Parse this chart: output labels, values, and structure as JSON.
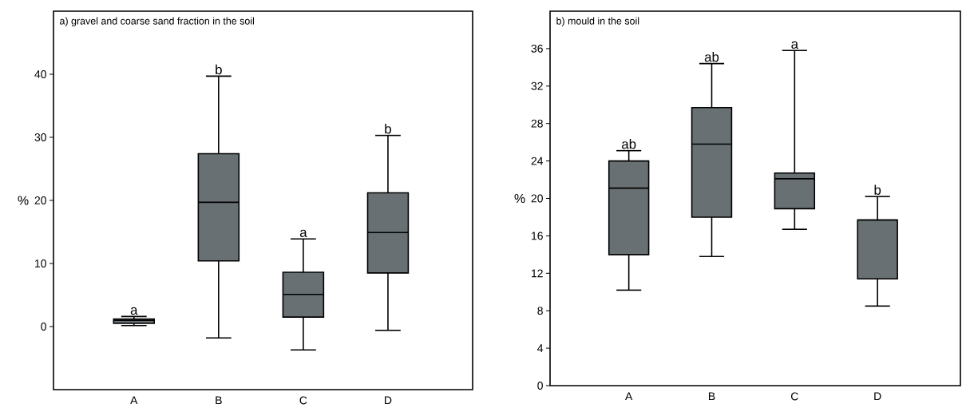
{
  "chart_data": [
    {
      "type": "box",
      "title": "a) gravel and coarse sand fraction in the soil",
      "ylabel": "%",
      "categories": [
        "A",
        "B",
        "C",
        "D"
      ],
      "color": "#687073",
      "boxes": [
        {
          "low": 0.15,
          "q1": 0.5,
          "median": 1.0,
          "q3": 1.2,
          "high": 1.6
        },
        {
          "low": -1.8,
          "q1": 10.4,
          "median": 19.7,
          "q3": 27.4,
          "high": 39.7
        },
        {
          "low": -3.7,
          "q1": 1.5,
          "median": 5.1,
          "q3": 8.6,
          "high": 13.9
        },
        {
          "low": -0.6,
          "q1": 8.5,
          "median": 14.9,
          "q3": 21.2,
          "high": 30.3
        }
      ],
      "ylim": [
        -10,
        50
      ],
      "yticks": [
        0,
        10,
        20,
        30,
        40
      ],
      "annotations": [
        "a",
        "b",
        "a",
        "b"
      ]
    },
    {
      "type": "box",
      "title": "b) mould in the soil",
      "ylabel": "%",
      "categories": [
        "A",
        "B",
        "C",
        "D"
      ],
      "color": "#687073",
      "boxes": [
        {
          "low": 10.2,
          "q1": 14.0,
          "median": 21.1,
          "q3": 24.0,
          "high": 25.1
        },
        {
          "low": 13.8,
          "q1": 18.0,
          "median": 25.8,
          "q3": 29.7,
          "high": 34.4
        },
        {
          "low": 16.7,
          "q1": 18.9,
          "median": 22.1,
          "q3": 22.7,
          "high": 35.8
        },
        {
          "low": 8.5,
          "q1": 11.4,
          "median": 17.7,
          "q3": 17.7,
          "high": 20.2
        }
      ],
      "ylim": [
        0,
        40
      ],
      "yticks": [
        0,
        4,
        8,
        12,
        16,
        20,
        24,
        28,
        32,
        36
      ],
      "annotations": [
        "ab",
        "ab",
        "a",
        "b"
      ]
    }
  ]
}
